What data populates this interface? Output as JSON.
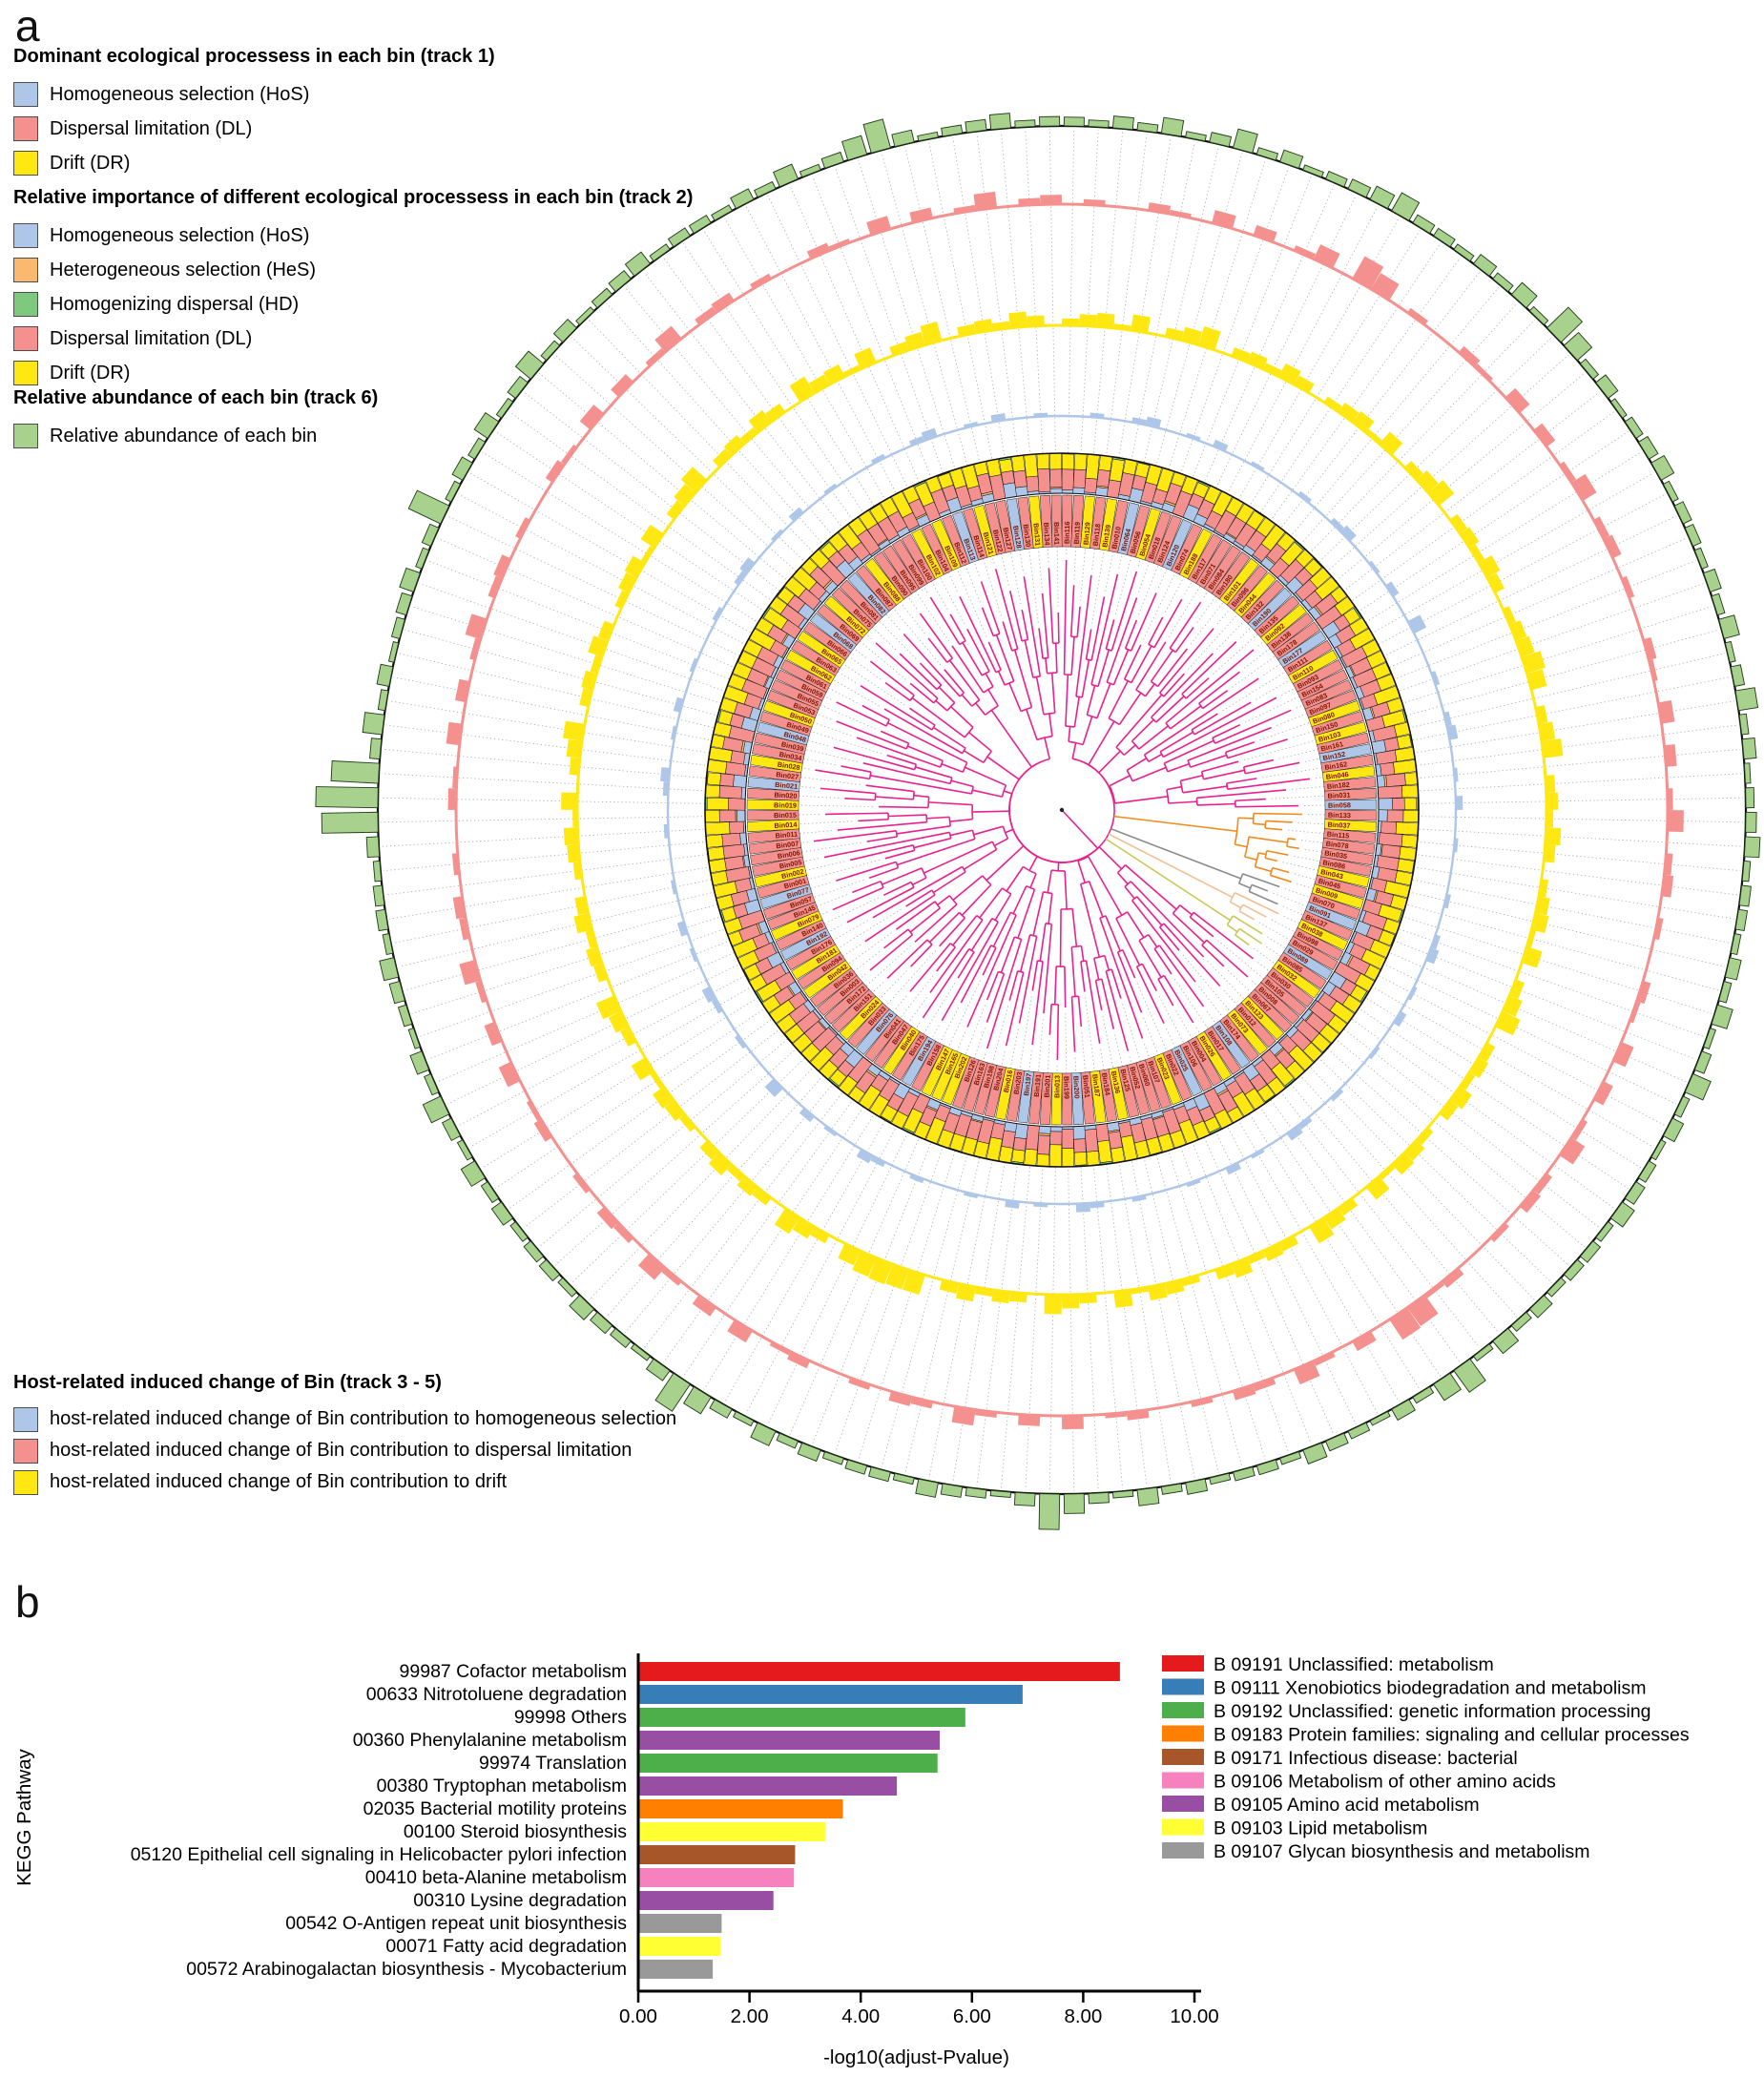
{
  "panel_a": {
    "letter": "a",
    "legend_groups": [
      {
        "title": "Dominant ecological processess in each bin (track 1)",
        "items": [
          {
            "name": "hos",
            "label": "Homogeneous selection (HoS)",
            "color": "#AEC6E8"
          },
          {
            "name": "dl",
            "label": "Dispersal limitation (DL)",
            "color": "#F4918E"
          },
          {
            "name": "dr",
            "label": "Drift (DR)",
            "color": "#FFE712"
          }
        ]
      },
      {
        "title": "Relative importance of different ecological processess in each bin (track 2)",
        "items": [
          {
            "name": "hos",
            "label": "Homogeneous selection (HoS)",
            "color": "#AEC6E8"
          },
          {
            "name": "hes",
            "label": "Heterogeneous selection (HeS)",
            "color": "#FBB96F"
          },
          {
            "name": "hd",
            "label": "Homogenizing dispersal (HD)",
            "color": "#7FC97F"
          },
          {
            "name": "dl",
            "label": "Dispersal limitation (DL)",
            "color": "#F4918E"
          },
          {
            "name": "dr",
            "label": "Drift (DR)",
            "color": "#FFE712"
          }
        ]
      },
      {
        "title": "Relative abundance of each bin (track 6)",
        "items": [
          {
            "name": "abundance",
            "label": "Relative abundance of each bin",
            "color": "#A9D18E"
          }
        ]
      },
      {
        "title": "Host-related induced change of Bin (track 3 - 5)",
        "items": [
          {
            "name": "t3",
            "label": "host-related induced change of Bin contribution to homogeneous selection",
            "color": "#AEC6E8"
          },
          {
            "name": "t4",
            "label": "host-related induced change of Bin contribution to dispersal limitation",
            "color": "#F4918E"
          },
          {
            "name": "t5",
            "label": "host-related induced change of Bin contribution to drift",
            "color": "#FFE712"
          }
        ]
      }
    ]
  },
  "panel_b": {
    "letter": "b"
  },
  "chart_data": [
    {
      "type": "circular_phylogenetic_tree_with_tracks",
      "center": [
        1113,
        849
      ],
      "rings": {
        "label_r": [
          276,
          330
        ],
        "stack_r": [
          332,
          374
        ],
        "t3_r": 413,
        "t4_r": 508,
        "t5_r": 635,
        "outer_r": 717,
        "t3_max": 18,
        "t4_max": 24,
        "t5_max": 28,
        "ab_max": 62
      },
      "colors": {
        "hos": "#AEC6E8",
        "hes": "#FBB96F",
        "hd": "#7FC97F",
        "dl": "#F4918E",
        "dr": "#FFE712",
        "abundance": "#A9D18E",
        "abundance_stroke": "#1d3b14",
        "label_text": "#7A1500",
        "grid": "#AAB0B8",
        "outer_circle": "#111111"
      },
      "dominant_map": {
        "B": "#AEC6E8",
        "P": "#F4918E",
        "Y": "#FFE712"
      },
      "stack_order": [
        "hos",
        "hes",
        "dl",
        "dr",
        "hd"
      ],
      "tree": {
        "color": "#E9218D",
        "ratios": [
          0.5,
          0.38,
          0.62,
          0.45,
          0.3,
          0.55
        ],
        "gap_base": 16,
        "gap_step": 8,
        "min_r": 55,
        "leaf_var": [
          0,
          26,
          48,
          14,
          70,
          34,
          8,
          55
        ],
        "clade_leaf_var": [
          0,
          10,
          20,
          5
        ]
      },
      "clades": [
        {
          "from": 44,
          "to": 52,
          "color": "#F08A1D"
        },
        {
          "from": 53,
          "to": 55,
          "color": "#8C8C8C"
        },
        {
          "from": 56,
          "to": 58,
          "color": "#F2BE92"
        },
        {
          "from": 59,
          "to": 61,
          "color": "#C9C85A"
        }
      ],
      "bins": {
        "columns": [
          "dom",
          "hes",
          "hos",
          "dl",
          "dr",
          "hd",
          "t3",
          "t4",
          "t5",
          "ab"
        ],
        "templates": [
          [
            "P",
            0,
            0.08,
            0.52,
            0.38,
            0.02,
            0,
            0.3,
            0,
            0.1
          ],
          [
            "P",
            0,
            0.15,
            0.45,
            0.4,
            0,
            0,
            0.5,
            0.2,
            0.06
          ],
          [
            "Y",
            0,
            0.05,
            0.35,
            0.6,
            0,
            0.25,
            0.6,
            0,
            0.15
          ],
          [
            "P",
            0.04,
            0.2,
            0.4,
            0.36,
            0,
            0,
            0.2,
            0,
            0.08
          ],
          [
            "Y",
            0,
            0,
            0.42,
            0.53,
            0.05,
            0,
            0.7,
            0.3,
            0.22
          ],
          [
            "P",
            0,
            0.1,
            0.55,
            0.35,
            0,
            0.3,
            0,
            0.15,
            0.05
          ],
          [
            "B",
            0,
            0.32,
            0.33,
            0.32,
            0.03,
            0.5,
            0.4,
            0,
            0.12
          ],
          [
            "P",
            0,
            0.06,
            0.48,
            0.46,
            0,
            0,
            0.6,
            0.5,
            0.28
          ],
          [
            "Y",
            0,
            0.12,
            0.33,
            0.55,
            0,
            0,
            0.85,
            0,
            0.07
          ],
          [
            "P",
            0.05,
            0.18,
            0.47,
            0.3,
            0,
            0.2,
            0,
            0.4,
            0.16
          ],
          [
            "P",
            0,
            0,
            0.6,
            0.4,
            0,
            0,
            0.4,
            0,
            0.04
          ],
          [
            "B",
            0,
            0.35,
            0.3,
            0.3,
            0.05,
            0.4,
            0.5,
            0.2,
            0.09
          ],
          [
            "P",
            0,
            0.22,
            0.4,
            0.38,
            0,
            0,
            0.3,
            0.6,
            0.13
          ],
          [
            "Y",
            0,
            0.08,
            0.37,
            0.55,
            0,
            0,
            0.65,
            0,
            0.2
          ],
          [
            "P",
            0,
            0.05,
            0.57,
            0.38,
            0,
            0.2,
            0.45,
            0.25,
            0.06
          ],
          [
            "P",
            0.03,
            0.12,
            0.45,
            0.4,
            0,
            0,
            0,
            0.35,
            0.11
          ]
        ],
        "overrides": {
          "14": {
            "t5": 0.95,
            "ab": 0.3
          },
          "15": {
            "t5": 0.7
          },
          "22": {
            "ab": 0.45
          },
          "30": {
            "t3": 0.8
          },
          "35": {
            "t4": 0.85
          },
          "70": {
            "t5": 0.85,
            "ab": 0.4
          },
          "71": {
            "t5": 0.9
          },
          "88": {
            "ab": 0.55
          },
          "96": {
            "t4": 0.9
          },
          "97": {
            "t4": 0.9
          },
          "98": {
            "t4": 0.95
          },
          "99": {
            "t4": 0.9,
            "dom": "Y"
          },
          "104": {
            "ab": 0.5
          },
          "110": {
            "t3": 0.7
          },
          "131": {
            "ab": 0.9
          },
          "132": {
            "ab": 1.0
          },
          "133": {
            "ab": 0.75
          },
          "144": {
            "ab": 0.55
          },
          "160": {
            "t4": 0.85
          },
          "168": {
            "ab": 0.45
          }
        },
        "labels": [
          "Bin116",
          "Bin119",
          "Bin129",
          "Bin118",
          "Bin139",
          "Bin010",
          "Bin064",
          "Bin056",
          "Bin054",
          "Bin018",
          "Bin124",
          "Bin120",
          "Bin074",
          "Bin188",
          "Bin117",
          "Bin071",
          "Bin084",
          "Bin180",
          "Bin101",
          "Bin096",
          "Bin044",
          "Bin132",
          "Bin190",
          "Bin135",
          "Bin092",
          "Bin138",
          "Bin178",
          "Bin177",
          "Bin111",
          "Bin110",
          "Bin093",
          "Bin154",
          "Bin083",
          "Bin097",
          "Bin080",
          "Bin150",
          "Bin103",
          "Bin161",
          "Bin152",
          "Bin162",
          "Bin046",
          "Bin182",
          "Bin031",
          "Bin058",
          "Bin133",
          "Bin037",
          "Bin115",
          "Bin078",
          "Bin035",
          "Bin086",
          "Bin043",
          "Bin045",
          "Bin009",
          "Bin070",
          "Bin091",
          "Bin137",
          "Bin038",
          "Bin098",
          "Bin029",
          "Bin089",
          "Bin085",
          "Bin032",
          "Bin030",
          "Bin105",
          "Bin008",
          "Bin067",
          "Bin123",
          "Bin012",
          "Bin073",
          "Bin174",
          "Bin108",
          "Bin017",
          "Bin026",
          "Bin004",
          "Bin106",
          "Bin025",
          "Bin022",
          "Bin023",
          "Bin107",
          "Bin060",
          "Bin052",
          "Bin125",
          "Bin136",
          "Bin184",
          "Bin187",
          "Bin051",
          "Bin200",
          "Bin199",
          "Bin013",
          "Bin201",
          "Bin191",
          "Bin197",
          "Bin203",
          "Bin016",
          "Bin204",
          "Bin198",
          "Bin163",
          "Bin126",
          "Bin202",
          "Bin165",
          "Bin147",
          "Bin158",
          "Bin194",
          "Bin175",
          "Bin040",
          "Bin047",
          "Bin041",
          "Bin076",
          "Bin033",
          "Bin024",
          "Bin151",
          "Bin172",
          "Bin003",
          "Bin036",
          "Bin042",
          "Bin094",
          "Bin181",
          "Bin176",
          "Bin192",
          "Bin140",
          "Bin079",
          "Bin145",
          "Bin057",
          "Bin077",
          "Bin001",
          "Bin002",
          "Bin005",
          "Bin006",
          "Bin007",
          "Bin011",
          "Bin014",
          "Bin015",
          "Bin019",
          "Bin020",
          "Bin021",
          "Bin027",
          "Bin028",
          "Bin034",
          "Bin039",
          "Bin048",
          "Bin049",
          "Bin050",
          "Bin053",
          "Bin055",
          "Bin059",
          "Bin061",
          "Bin062",
          "Bin063",
          "Bin065",
          "Bin066",
          "Bin068",
          "Bin069",
          "Bin072",
          "Bin075",
          "Bin081",
          "Bin082",
          "Bin087",
          "Bin088",
          "Bin090",
          "Bin095",
          "Bin099",
          "Bin100",
          "Bin102",
          "Bin104",
          "Bin109",
          "Bin112",
          "Bin113",
          "Bin114",
          "Bin121",
          "Bin122",
          "Bin127",
          "Bin128",
          "Bin130",
          "Bin131",
          "Bin134",
          "Bin141"
        ]
      }
    },
    {
      "type": "bar",
      "orientation": "horizontal",
      "categories": [
        "99987 Cofactor metabolism",
        "00633 Nitrotoluene degradation",
        "99998 Others",
        "00360 Phenylalanine metabolism",
        "99974 Translation",
        "00380 Tryptophan metabolism",
        "02035 Bacterial motility proteins",
        "00100 Steroid biosynthesis",
        "05120 Epithelial cell signaling in Helicobacter pylori infection",
        "00410 beta-Alanine metabolism",
        "00310 Lysine degradation",
        "00542 O-Antigen repeat unit biosynthesis",
        "00071 Fatty acid degradation",
        "00572 Arabinogalactan biosynthesis - Mycobacterium"
      ],
      "values": [
        8.66,
        6.91,
        5.88,
        5.42,
        5.38,
        4.65,
        3.68,
        3.36,
        2.82,
        2.8,
        2.43,
        1.5,
        1.48,
        1.34
      ],
      "bar_colors": [
        "#E41A1C",
        "#377EB8",
        "#4DAF4A",
        "#984EA3",
        "#4DAF4A",
        "#984EA3",
        "#FF7F00",
        "#FFFF33",
        "#A65628",
        "#F781BF",
        "#984EA3",
        "#999999",
        "#FFFF33",
        "#999999"
      ],
      "xlabel": "-log10(adjust-Pvalue)",
      "ylabel": "KEGG Pathway",
      "xlim": [
        0,
        10
      ],
      "xticks": [
        "0.00",
        "2.00",
        "4.00",
        "6.00",
        "8.00",
        "10.00"
      ],
      "grid": false,
      "legend_position": "right",
      "legend": [
        {
          "color": "#E41A1C",
          "label": "B  09191 Unclassified: metabolism"
        },
        {
          "color": "#377EB8",
          "label": "B  09111 Xenobiotics biodegradation and metabolism"
        },
        {
          "color": "#4DAF4A",
          "label": "B  09192 Unclassified: genetic information processing"
        },
        {
          "color": "#FF7F00",
          "label": "B  09183 Protein families: signaling and cellular processes"
        },
        {
          "color": "#A65628",
          "label": "B  09171 Infectious disease: bacterial"
        },
        {
          "color": "#F781BF",
          "label": "B  09106 Metabolism of other amino acids"
        },
        {
          "color": "#984EA3",
          "label": "B  09105 Amino acid metabolism"
        },
        {
          "color": "#FFFF33",
          "label": "B  09103 Lipid metabolism"
        },
        {
          "color": "#999999",
          "label": "B  09107 Glycan biosynthesis and metabolism"
        }
      ]
    }
  ]
}
